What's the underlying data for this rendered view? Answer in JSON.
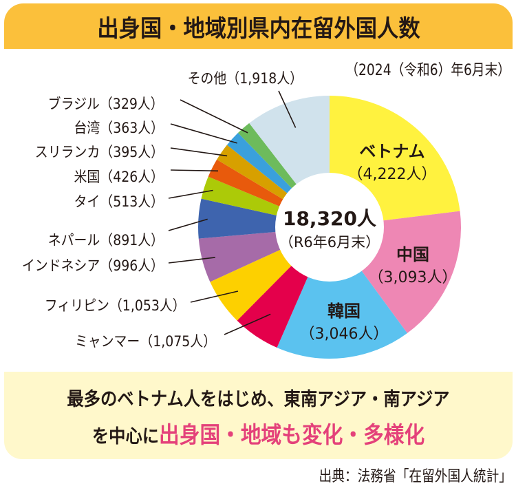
{
  "header": {
    "title": "出身国・地域別県内在留外国人数",
    "date_note": "（2024（令和6）年6月末）"
  },
  "center": {
    "total": "18,320人",
    "sub": "（R6年6月末）"
  },
  "banner": {
    "line1": "最多のベトナム人をはじめ、東南アジア・南アジア",
    "line2_prefix": "を中心に",
    "line2_highlight": "出身国・地域も変化・多様化"
  },
  "source": "出典：法務省「在留外国人統計」",
  "colors": {
    "header_bg": "#fbc03b",
    "banner_bg": "#fff8cb",
    "highlight": "#e4417a",
    "text": "#231815"
  },
  "chart_data": {
    "type": "pie",
    "title": "出身国・地域別県内在留外国人数",
    "subtitle": "2024（令和6）年6月末",
    "total": 18320,
    "unit": "人",
    "donut_center_label": "18,320人（R6年6月末）",
    "start_angle_deg": 0,
    "direction": "clockwise",
    "categories": [
      "ベトナム",
      "中国",
      "韓国",
      "ミャンマー",
      "フィリピン",
      "インドネシア",
      "ネパール",
      "タイ",
      "米国",
      "スリランカ",
      "台湾",
      "ブラジル",
      "その他"
    ],
    "values": [
      4222,
      3093,
      3046,
      1075,
      1053,
      996,
      891,
      513,
      426,
      395,
      363,
      329,
      1918
    ],
    "value_labels": [
      "（4,222人）",
      "（3,093人）",
      "（3,046人）",
      "（1,075人）",
      "（1,053人）",
      "（996人）",
      "（891人）",
      "（513人）",
      "（426人）",
      "（395人）",
      "（363人）",
      "（329人）",
      "（1,918人）"
    ],
    "slice_colors": [
      "#fff23f",
      "#ee87b4",
      "#5bc2ef",
      "#e4004b",
      "#fdd000",
      "#a66ba8",
      "#3e64ae",
      "#acca08",
      "#e85a0c",
      "#d7a000",
      "#3aa0dc",
      "#6dbb5c",
      "#d0e2ec"
    ],
    "legend": "none (callout labels)"
  },
  "outer_labels": [
    {
      "text": "その他（1,918人）",
      "index": 12
    },
    {
      "text": "ブラジル（329人）",
      "index": 11
    },
    {
      "text": "台湾（363人）",
      "index": 10
    },
    {
      "text": "スリランカ（395人）",
      "index": 9
    },
    {
      "text": "米国（426人）",
      "index": 8
    },
    {
      "text": "タイ（513人）",
      "index": 7
    },
    {
      "text": "ネパール（891人）",
      "index": 6
    },
    {
      "text": "インドネシア（996人）",
      "index": 5
    },
    {
      "text": "フィリピン（1,053人）",
      "index": 4
    },
    {
      "text": "ミャンマー（1,075人）",
      "index": 3
    }
  ],
  "inner_labels": [
    {
      "name": "ベトナム",
      "value": "（4,222人）"
    },
    {
      "name": "中国",
      "value": "（3,093人）"
    },
    {
      "name": "韓国",
      "value": "（3,046人）"
    }
  ]
}
